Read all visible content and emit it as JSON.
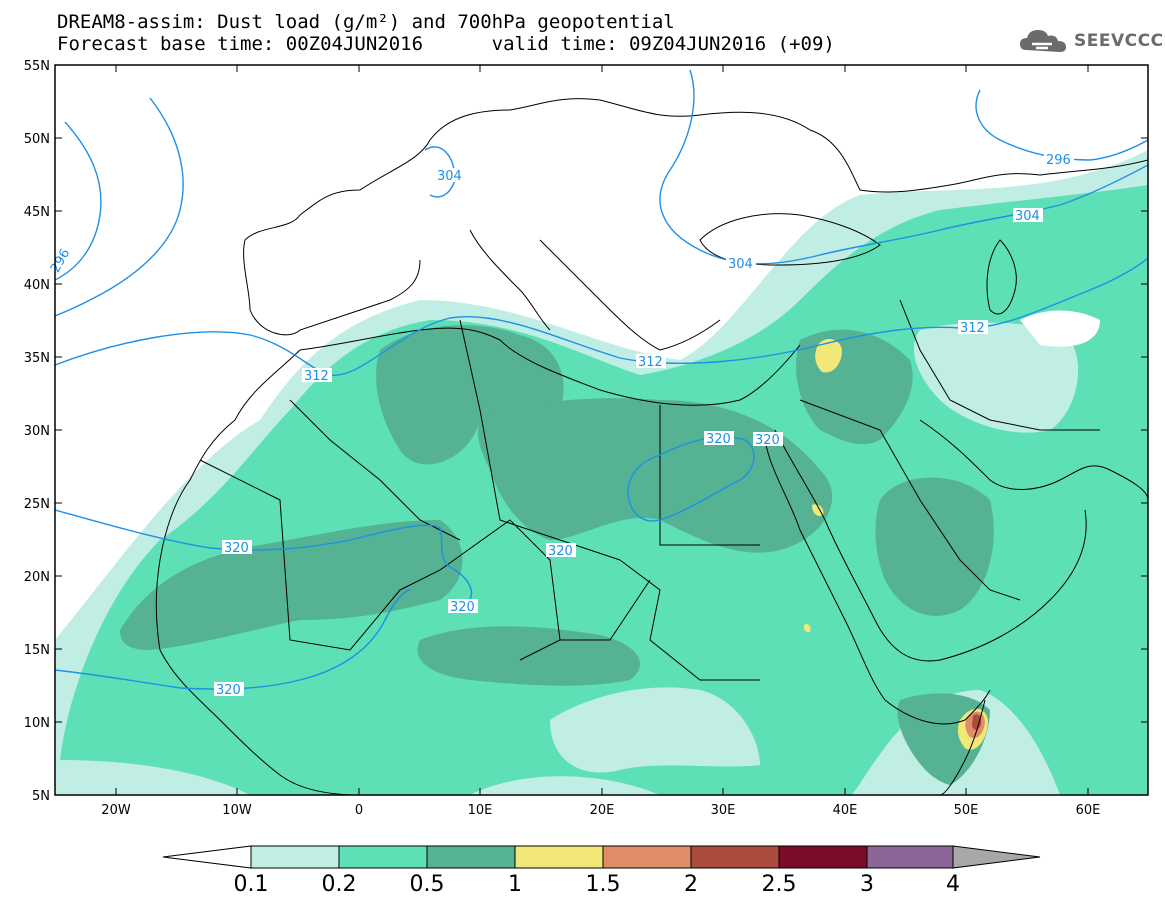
{
  "title": {
    "line1": "DREAM8-assim: Dust load (g/m²) and 700hPa geopotential",
    "line2": "Forecast base time: 00Z04JUN2016      valid time: 09Z04JUN2016 (+09)"
  },
  "logo": {
    "text": "SEEVCCC",
    "icon": "cloud-icon"
  },
  "axes": {
    "lat_labels": [
      "55N",
      "50N",
      "45N",
      "40N",
      "35N",
      "30N",
      "25N",
      "20N",
      "15N",
      "10N",
      "5N"
    ],
    "lon_labels": [
      "20W",
      "10W",
      "0",
      "10E",
      "20E",
      "30E",
      "40E",
      "50E",
      "60E"
    ],
    "lat_range": [
      5,
      55
    ],
    "lon_range": [
      -25,
      65
    ]
  },
  "contours": {
    "variable": "700hPa geopotential",
    "labels": [
      "304",
      "296",
      "304",
      "304",
      "296",
      "312",
      "312",
      "312",
      "320",
      "320",
      "320",
      "320",
      "320",
      "320"
    ]
  },
  "legend": {
    "labels": [
      "0.1",
      "0.2",
      "0.5",
      "1",
      "1.5",
      "2",
      "2.5",
      "3",
      "4"
    ],
    "colors": [
      "#c0eee4",
      "#5ee0b7",
      "#55b393",
      "#f1e878",
      "#e08c68",
      "#ab4c3e",
      "#7a0c2a",
      "#8a6699",
      "#a8a8a8"
    ]
  }
}
